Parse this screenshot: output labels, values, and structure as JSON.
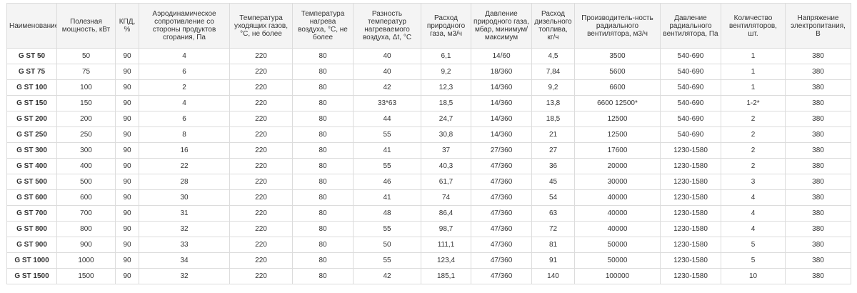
{
  "table": {
    "headers": [
      "Наименование",
      "Полезная мощность, кВт",
      "КПД, %",
      "Аэродинамическое сопротивление со стороны продуктов сгорания, Па",
      "Температура уходящих газов, °С, не более",
      "Температура нагрева воздуха, °С, не более",
      "Разность температур нагреваемого воздуха, Δt, °С",
      "Расход природного газа, м3/ч",
      "Давление природного газа, мбар, минимум/ максимум",
      "Расход дизельного топлива, кг/ч",
      "Производитель-ность радиального вентилятора, м3/ч",
      "Давление радиального вентилятора, Па",
      "Количество вентиляторов, шт.",
      "Напряжение электропитания, В"
    ],
    "rows": [
      [
        "G ST 50",
        "50",
        "90",
        "4",
        "220",
        "80",
        "40",
        "6,1",
        "14/60",
        "4,5",
        "3500",
        "540-690",
        "1",
        "380"
      ],
      [
        "G ST 75",
        "75",
        "90",
        "6",
        "220",
        "80",
        "40",
        "9,2",
        "18/360",
        "7,84",
        "5600",
        "540-690",
        "1",
        "380"
      ],
      [
        "G ST 100",
        "100",
        "90",
        "2",
        "220",
        "80",
        "42",
        "12,3",
        "14/360",
        "9,2",
        "6600",
        "540-690",
        "1",
        "380"
      ],
      [
        "G ST 150",
        "150",
        "90",
        "4",
        "220",
        "80",
        "33*63",
        "18,5",
        "14/360",
        "13,8",
        "6600 12500*",
        "540-690",
        "1-2*",
        "380"
      ],
      [
        "G ST 200",
        "200",
        "90",
        "6",
        "220",
        "80",
        "44",
        "24,7",
        "14/360",
        "18,5",
        "12500",
        "540-690",
        "2",
        "380"
      ],
      [
        "G ST 250",
        "250",
        "90",
        "8",
        "220",
        "80",
        "55",
        "30,8",
        "14/360",
        "21",
        "12500",
        "540-690",
        "2",
        "380"
      ],
      [
        "G ST 300",
        "300",
        "90",
        "16",
        "220",
        "80",
        "41",
        "37",
        "27/360",
        "27",
        "17600",
        "1230-1580",
        "2",
        "380"
      ],
      [
        "G ST 400",
        "400",
        "90",
        "22",
        "220",
        "80",
        "55",
        "40,3",
        "47/360",
        "36",
        "20000",
        "1230-1580",
        "2",
        "380"
      ],
      [
        "G ST 500",
        "500",
        "90",
        "28",
        "220",
        "80",
        "46",
        "61,7",
        "47/360",
        "45",
        "30000",
        "1230-1580",
        "3",
        "380"
      ],
      [
        "G ST 600",
        "600",
        "90",
        "30",
        "220",
        "80",
        "41",
        "74",
        "47/360",
        "54",
        "40000",
        "1230-1580",
        "4",
        "380"
      ],
      [
        "G ST 700",
        "700",
        "90",
        "31",
        "220",
        "80",
        "48",
        "86,4",
        "47/360",
        "63",
        "40000",
        "1230-1580",
        "4",
        "380"
      ],
      [
        "G ST 800",
        "800",
        "90",
        "32",
        "220",
        "80",
        "55",
        "98,7",
        "47/360",
        "72",
        "40000",
        "1230-1580",
        "4",
        "380"
      ],
      [
        "G ST 900",
        "900",
        "90",
        "33",
        "220",
        "80",
        "50",
        "111,1",
        "47/360",
        "81",
        "50000",
        "1230-1580",
        "5",
        "380"
      ],
      [
        "G ST 1000",
        "1000",
        "90",
        "34",
        "220",
        "80",
        "55",
        "123,4",
        "47/360",
        "91",
        "50000",
        "1230-1580",
        "5",
        "380"
      ],
      [
        "G ST 1500",
        "1500",
        "90",
        "32",
        "220",
        "80",
        "42",
        "185,1",
        "47/360",
        "140",
        "100000",
        "1230-1580",
        "10",
        "380"
      ]
    ]
  }
}
